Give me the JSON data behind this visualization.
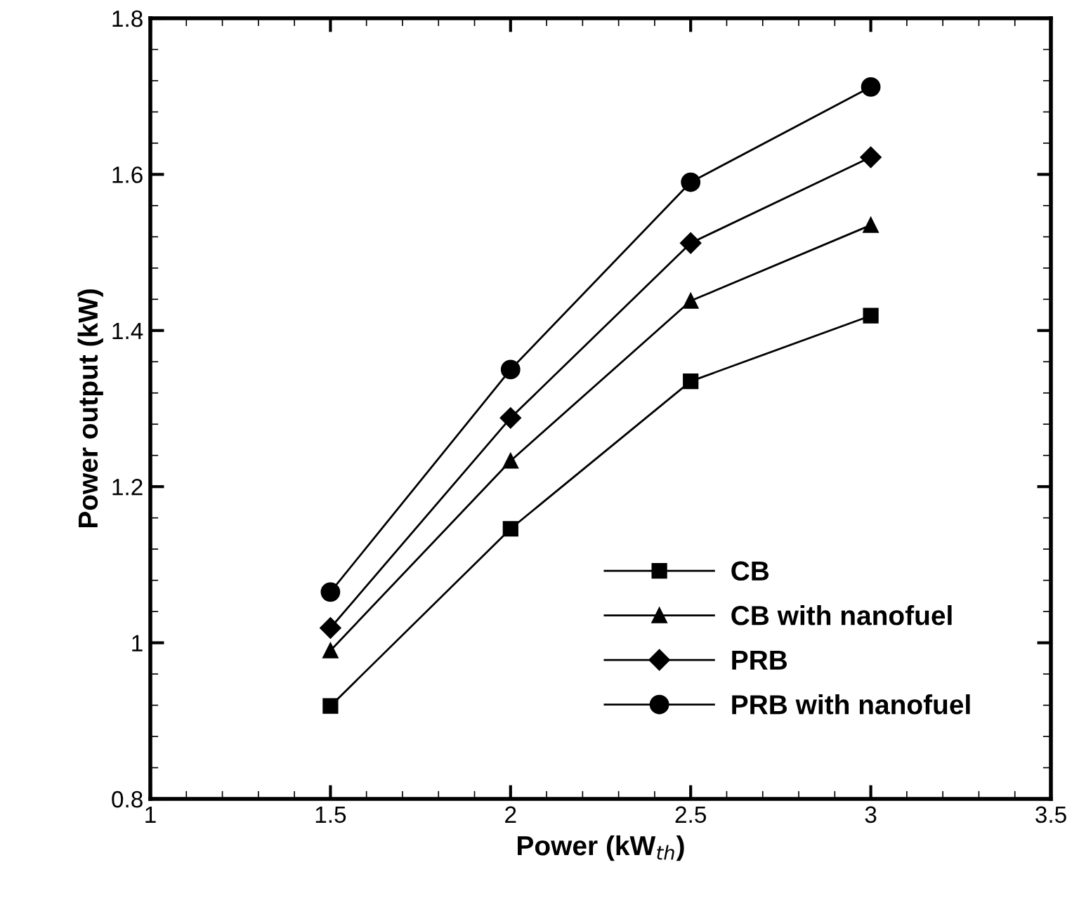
{
  "chart_data": {
    "type": "line",
    "xlabel": "Power (kW$_{th}$)",
    "ylabel": "Power output (kW)",
    "x": [
      1.5,
      2,
      2.5,
      3
    ],
    "series": [
      {
        "name": "CB",
        "color": "#000000",
        "marker": "square",
        "values": [
          0.919,
          1.146,
          1.335,
          1.419
        ]
      },
      {
        "name": "CB with nanofuel",
        "color": "#000000",
        "marker": "triangle",
        "values": [
          0.99,
          1.233,
          1.438,
          1.535
        ]
      },
      {
        "name": "PRB",
        "color": "#000000",
        "marker": "diamond",
        "values": [
          1.019,
          1.288,
          1.512,
          1.622
        ]
      },
      {
        "name": "PRB with nanofuel",
        "color": "#000000",
        "marker": "circle",
        "values": [
          1.065,
          1.35,
          1.59,
          1.712
        ]
      }
    ],
    "xlim": [
      1,
      3.5
    ],
    "xticks": [
      1,
      1.5,
      2,
      2.5,
      3,
      3.5
    ],
    "ylim": [
      0.8,
      1.8
    ],
    "yticks": [
      0.8,
      1,
      1.2,
      1.4,
      1.6,
      1.8
    ],
    "grid": false,
    "legend": "bottom right",
    "line_style": "solid"
  }
}
